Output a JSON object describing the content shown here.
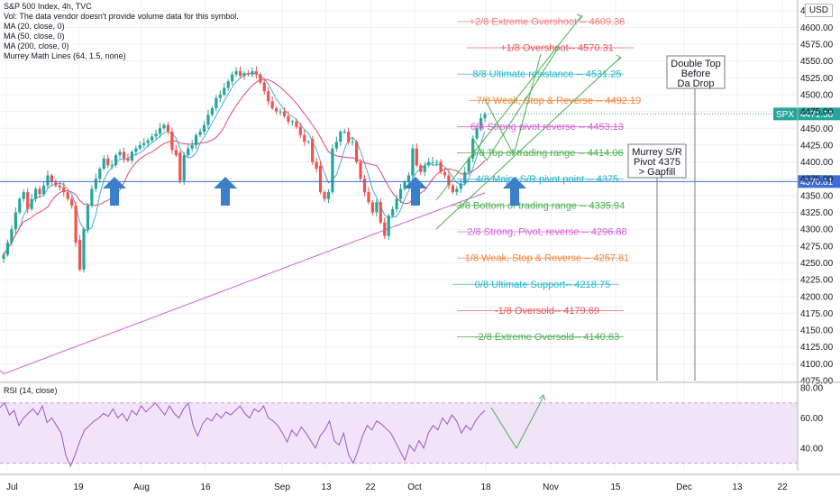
{
  "header": {
    "title": "S&P 500 Index, 4h, TVC",
    "volume_note": "Vol: The data vendor doesn't provide volume data for this symbol.",
    "indicators": [
      "MA (20, close, 0)",
      "MA (50, close, 0)",
      "MA (200, close, 0)",
      "Murrey Math Lines (64, 1.5, none)"
    ],
    "currency_button": "USD",
    "rsi_label": "RSI (14, close)"
  },
  "colors": {
    "up": "#26a69a",
    "down": "#ef5350",
    "ma20": "#4aa8e0",
    "ma50": "#e8446c",
    "ma200": "#d65ed6",
    "pivot_line": "#3b6fd6",
    "arrow": "#3a7fc8",
    "rsi_line": "#9c57c8",
    "rsi_band": "#f1e3f8",
    "drawing": "#4caf50"
  },
  "chart_data": [
    {
      "type": "candlestick",
      "title": "S&P 500 Index, 4h, TVC",
      "xlabel": "",
      "ylabel": "",
      "x_tick_labels": [
        "Jul",
        "19",
        "Aug",
        "16",
        "Sep",
        "13",
        "22",
        "Oct",
        "18",
        "Nov",
        "15",
        "Dec",
        "13",
        "22"
      ],
      "y_ticks": [
        4075,
        4100,
        4125,
        4150,
        4175,
        4200,
        4225,
        4250,
        4275,
        4300,
        4325,
        4350,
        4375,
        4400,
        4425,
        4450,
        4475,
        4500,
        4525,
        4550,
        4575,
        4600,
        4625
      ],
      "ylim": [
        4075,
        4630
      ],
      "price_labels": [
        {
          "symbol": "SPX",
          "value": "4471.38"
        },
        {
          "symbol": "",
          "value": "4370.81"
        }
      ],
      "close_series": [
        4262,
        4280,
        4300,
        4325,
        4345,
        4355,
        4330,
        4345,
        4360,
        4352,
        4365,
        4380,
        4370,
        4365,
        4362,
        4355,
        4345,
        4335,
        4280,
        4240,
        4300,
        4335,
        4360,
        4375,
        4390,
        4405,
        4395,
        4395,
        4410,
        4415,
        4405,
        4402,
        4415,
        4420,
        4425,
        4428,
        4432,
        4438,
        4442,
        4450,
        4455,
        4445,
        4418,
        4410,
        4372,
        4410,
        4420,
        4425,
        4440,
        4445,
        4455,
        4470,
        4480,
        4495,
        4500,
        4510,
        4520,
        4530,
        4535,
        4528,
        4532,
        4530,
        4535,
        4530,
        4518,
        4505,
        4490,
        4480,
        4475,
        4475,
        4468,
        4460,
        4460,
        4452,
        4440,
        4430,
        4430,
        4400,
        4390,
        4355,
        4345,
        4355,
        4420,
        4430,
        4445,
        4445,
        4430,
        4430,
        4400,
        4375,
        4355,
        4340,
        4325,
        4340,
        4310,
        4290,
        4320,
        4330,
        4345,
        4360,
        4370,
        4380,
        4420,
        4395,
        4385,
        4395,
        4400,
        4400,
        4400,
        4385,
        4380,
        4365,
        4355,
        4360,
        4368,
        4385,
        4405,
        4435,
        4450,
        4465,
        4471
      ],
      "moving_averages": [
        {
          "name": "MA (20, close, 0)"
        },
        {
          "name": "MA (50, close, 0)"
        },
        {
          "name": "MA (200, close, 0)"
        }
      ],
      "murrey_lines": [
        {
          "label": "+2/8 Extreme Overshoot -- 4609.38",
          "value": 4609.38,
          "color": "#ef7d7d"
        },
        {
          "label": "+1/8 Overshoot-- 4570.31",
          "value": 4570.31,
          "color": "#e8505b"
        },
        {
          "label": "8/8 Ultimate resistance -- 4531.25",
          "value": 4531.25,
          "color": "#22b5c9"
        },
        {
          "label": "7/8 Weak, Stop & Reverse -- 4492.19",
          "value": 4492.19,
          "color": "#f0833a"
        },
        {
          "label": "6/8 Strong pivot reverse -- 4453.13",
          "value": 4453.13,
          "color": "#d65ed6"
        },
        {
          "label": "5/8 Top of trading range -- 4414.06",
          "value": 4414.06,
          "color": "#4caf50"
        },
        {
          "label": "4/8 Major S/R pivot point -- 4375",
          "value": 4375,
          "color": "#22b5c9"
        },
        {
          "label": "3/8 Bottom of trading range -- 4335.94",
          "value": 4335.94,
          "color": "#4caf50"
        },
        {
          "label": "2/8 Strong, Pivot, reverse -- 4296.88",
          "value": 4296.88,
          "color": "#d65ed6"
        },
        {
          "label": "1/8 Weak, Stop & Reverse -- 4257.81",
          "value": 4257.81,
          "color": "#f0833a"
        },
        {
          "label": "0/8 Ultimate Support-- 4218.75",
          "value": 4218.75,
          "color": "#22b5c9"
        },
        {
          "label": "-1/8 Oversold-- 4179.69",
          "value": 4179.69,
          "color": "#e8505b"
        },
        {
          "label": "-2/8 Extreme Oversold-- 4140.63",
          "value": 4140.63,
          "color": "#4caf50"
        }
      ],
      "horizontal_line": {
        "value": 4370.81
      },
      "annotations": [
        {
          "text": [
            "Double Top",
            "Before",
            "Da Drop"
          ]
        },
        {
          "text": [
            "Murrey S/R",
            "Pivot 4375",
            "> Gapfill"
          ]
        }
      ],
      "up_arrows": 4
    },
    {
      "type": "line",
      "title": "RSI (14, close)",
      "y_ticks": [
        40.0,
        60.0,
        80.0
      ],
      "ylim": [
        25,
        83
      ],
      "band": [
        30,
        70
      ],
      "values": [
        67,
        70,
        62,
        65,
        55,
        60,
        63,
        66,
        62,
        68,
        57,
        60,
        55,
        50,
        35,
        28,
        36,
        45,
        52,
        55,
        58,
        60,
        63,
        61,
        66,
        60,
        63,
        58,
        65,
        62,
        68,
        64,
        67,
        70,
        66,
        62,
        68,
        63,
        60,
        66,
        70,
        55,
        48,
        56,
        60,
        58,
        63,
        60,
        64,
        62,
        65,
        68,
        63,
        60,
        66,
        64,
        68,
        60,
        58,
        55,
        50,
        44,
        52,
        48,
        54,
        50,
        45,
        40,
        48,
        52,
        58,
        45,
        42,
        50,
        36,
        30,
        38,
        48,
        55,
        52,
        58,
        56,
        53,
        50,
        44,
        38,
        32,
        42,
        38,
        45,
        40,
        50,
        55,
        52,
        60,
        56,
        62,
        58,
        50,
        55,
        52,
        58,
        62,
        65
      ]
    }
  ]
}
